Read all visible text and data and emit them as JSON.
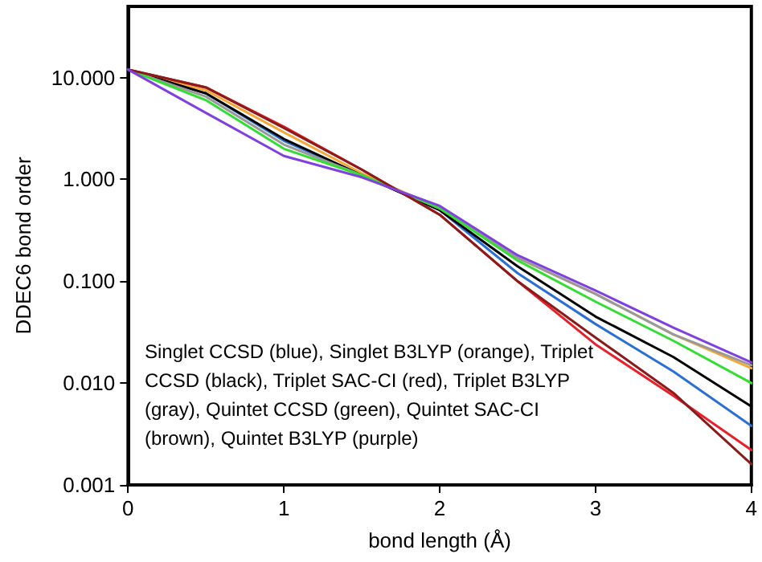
{
  "chart_data": {
    "type": "line",
    "xlabel": "bond length (Å)",
    "ylabel": "DDEC6 bond order",
    "x": [
      0,
      0.5,
      1,
      1.5,
      2,
      2.5,
      3,
      3.5,
      4
    ],
    "series": [
      {
        "color": "#2a6fd6",
        "values": [
          12,
          7,
          2.4,
          1.1,
          0.5,
          0.12,
          0.038,
          0.013,
          0.0038
        ]
      },
      {
        "color": "#f4a83a",
        "values": [
          12,
          7.5,
          2.9,
          1.15,
          0.52,
          0.17,
          0.075,
          0.03,
          0.014
        ]
      },
      {
        "color": "#000000",
        "values": [
          12,
          7,
          2.5,
          1.1,
          0.5,
          0.14,
          0.045,
          0.018,
          0.0059
        ]
      },
      {
        "color": "#e8202a",
        "values": [
          12,
          8,
          3.3,
          1.25,
          0.45,
          0.1,
          0.024,
          0.0075,
          0.0022
        ]
      },
      {
        "color": "#999999",
        "values": [
          12,
          6.5,
          2.2,
          1.1,
          0.52,
          0.17,
          0.075,
          0.03,
          0.015
        ]
      },
      {
        "color": "#33dd33",
        "values": [
          12,
          6,
          2,
          1.1,
          0.52,
          0.16,
          0.063,
          0.026,
          0.01
        ]
      },
      {
        "color": "#8b1a1a",
        "values": [
          12,
          8,
          3.2,
          1.25,
          0.45,
          0.1,
          0.028,
          0.008,
          0.0016
        ]
      },
      {
        "color": "#8040e0",
        "values": [
          12,
          4.5,
          1.7,
          1.05,
          0.55,
          0.18,
          0.081,
          0.035,
          0.016
        ]
      }
    ],
    "log": "y",
    "xlim": [
      0,
      4
    ],
    "xticks": [
      0,
      1,
      2,
      3,
      4
    ],
    "ylim": [
      0.001,
      50
    ],
    "yticks": [
      {
        "value": 0.001,
        "label": "0.001"
      },
      {
        "value": 0.01,
        "label": "0.010"
      },
      {
        "value": 0.1,
        "label": "0.100"
      },
      {
        "value": 1,
        "label": "1.000"
      },
      {
        "value": 10,
        "label": "10.000"
      }
    ],
    "marker": "none",
    "line_style": "solid",
    "annotations": [
      "Singlet CCSD (blue), Singlet B3LYP (orange), Triplet CCSD (black), Triplet SAC-CI (red), Triplet B3LYP (gray), Quintet CCSD (green), Quintet SAC-CI (brown), Quintet B3LYP (purple)"
    ]
  }
}
